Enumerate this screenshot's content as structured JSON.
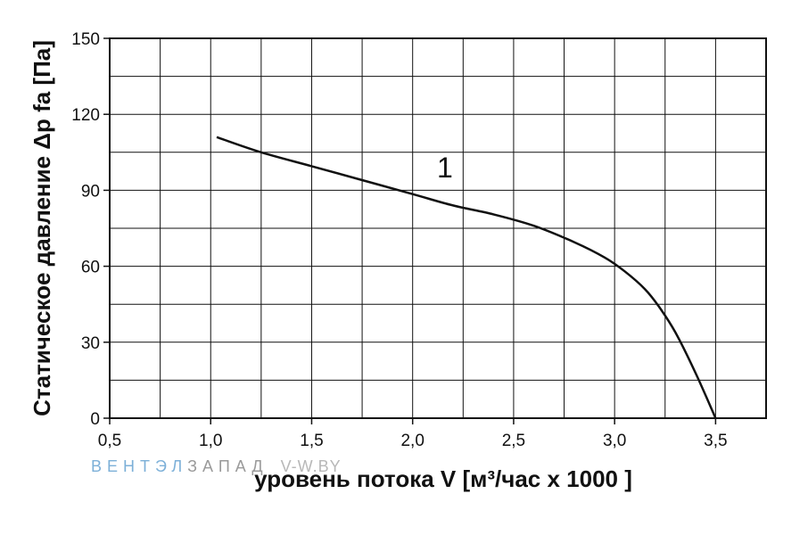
{
  "watermark": {
    "part1": "ВЕНТЭЛ",
    "part2": "ЗАПАД",
    "part3": "V-W.BY",
    "color1": "#7db0d8",
    "color2": "#9a9a9a",
    "color3": "#b8b8b8"
  },
  "chart_data": {
    "type": "line",
    "title": "",
    "xlabel": "уровень потока  V [м³/час x 1000 ]",
    "ylabel": "Статическое давление  Δp fa [Па]",
    "xlim": [
      0.5,
      3.75
    ],
    "ylim": [
      0,
      150
    ],
    "x_ticks": [
      0.5,
      1.0,
      1.5,
      2.0,
      2.5,
      3.0,
      3.5
    ],
    "x_tick_labels": [
      "0,5",
      "1,0",
      "1,5",
      "2,0",
      "2,5",
      "3,0",
      "3,5"
    ],
    "y_ticks": [
      0,
      30,
      60,
      90,
      120,
      150
    ],
    "y_tick_labels": [
      "0",
      "30",
      "60",
      "90",
      "120",
      "150"
    ],
    "grid": true,
    "series": [
      {
        "name": "1",
        "x": [
          1.03,
          1.25,
          1.5,
          1.75,
          2.0,
          2.2,
          2.4,
          2.6,
          2.8,
          2.95,
          3.05,
          3.15,
          3.22,
          3.3,
          3.4,
          3.5
        ],
        "y": [
          111,
          105,
          99.5,
          94,
          88.5,
          84,
          80.5,
          76,
          69.5,
          63.5,
          58,
          51,
          44,
          34,
          18,
          0
        ]
      }
    ]
  }
}
